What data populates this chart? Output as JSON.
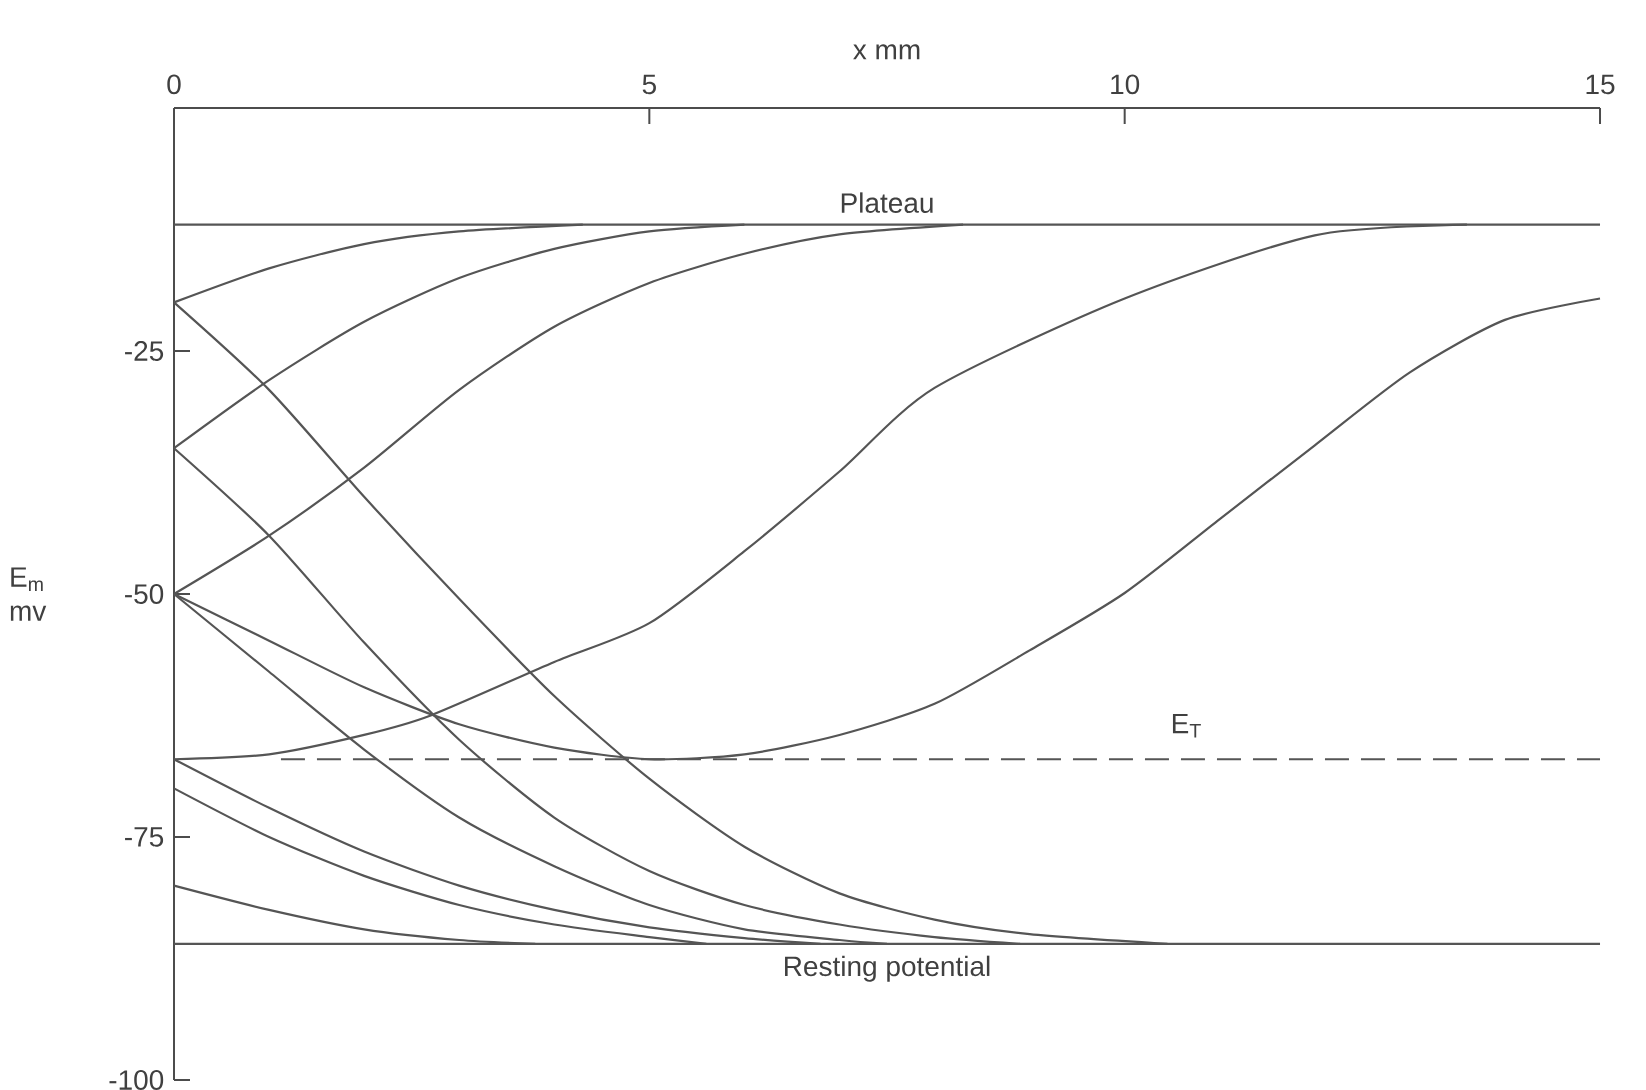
{
  "chart_data": {
    "type": "line",
    "xlabel": "x mm",
    "ylabel": "E$_{m}$ mv",
    "xlim": [
      0,
      15
    ],
    "ylim": [
      -100,
      0
    ],
    "xticks": [
      0,
      5,
      10,
      15
    ],
    "yticks": [
      -25,
      -50,
      -75,
      -100
    ],
    "grid": false,
    "marker": "none",
    "line_style": "solid",
    "series": [
      {
        "color": "#555555",
        "x": [
          0,
          1,
          2,
          3,
          4.3
        ],
        "values": [
          -20,
          -16.5,
          -14,
          -12.7,
          -12
        ]
      },
      {
        "color": "#555555",
        "x": [
          0,
          1,
          2,
          3,
          4,
          5,
          6
        ],
        "values": [
          -35,
          -28,
          -22,
          -17.5,
          -14.5,
          -12.7,
          -12
        ]
      },
      {
        "color": "#555555",
        "x": [
          0,
          1,
          2,
          3,
          4,
          5,
          6,
          7,
          8.3
        ],
        "values": [
          -50,
          -44,
          -37,
          -29,
          -22.5,
          -18,
          -15,
          -13,
          -12
        ]
      },
      {
        "color": "#555555",
        "x": [
          0,
          1,
          2,
          2.7,
          4,
          5,
          6,
          7,
          8,
          10,
          12,
          13.6
        ],
        "values": [
          -67,
          -66.5,
          -64.5,
          -62.5,
          -57,
          -53,
          -45.6,
          -37.4,
          -28.8,
          -19.6,
          -13.1,
          -12
        ]
      },
      {
        "color": "#555555",
        "x": [
          0,
          1,
          2,
          3,
          4,
          5,
          6,
          7,
          8,
          9,
          10,
          11,
          12,
          13,
          14,
          15
        ],
        "values": [
          -50,
          -54.8,
          -59.6,
          -63.4,
          -65.8,
          -67,
          -66.5,
          -64.5,
          -61.3,
          -55.8,
          -49.9,
          -42.3,
          -34.7,
          -27.2,
          -21.8,
          -19.6
        ]
      },
      {
        "color": "#555555",
        "x": [
          0,
          1,
          2,
          3,
          4,
          5,
          6,
          7,
          8,
          9,
          10.45
        ],
        "values": [
          -20,
          -29,
          -40,
          -50.5,
          -60.5,
          -69,
          -76,
          -80.8,
          -83.5,
          -85,
          -86
        ]
      },
      {
        "color": "#555555",
        "x": [
          0,
          1,
          2,
          3,
          4,
          5,
          6,
          7,
          8,
          8.9
        ],
        "values": [
          -35,
          -44,
          -55,
          -65,
          -73,
          -78.5,
          -82,
          -84,
          -85.3,
          -86
        ]
      },
      {
        "color": "#555555",
        "x": [
          0,
          1,
          2,
          3,
          4,
          5,
          6,
          7,
          7.5
        ],
        "values": [
          -50,
          -58,
          -66,
          -73,
          -78,
          -82,
          -84.5,
          -85.6,
          -86
        ]
      },
      {
        "color": "#555555",
        "x": [
          0,
          1,
          2,
          3,
          4,
          5,
          6,
          6.8
        ],
        "values": [
          -67,
          -72,
          -76.5,
          -80,
          -82.5,
          -84.3,
          -85.4,
          -86
        ]
      },
      {
        "color": "#555555",
        "x": [
          0,
          1,
          2,
          3,
          4,
          5,
          5.6
        ],
        "values": [
          -70,
          -75,
          -79,
          -82,
          -84,
          -85.3,
          -86
        ]
      },
      {
        "color": "#555555",
        "x": [
          0,
          1,
          2,
          3,
          3.8
        ],
        "values": [
          -80,
          -82.5,
          -84.5,
          -85.6,
          -86
        ]
      }
    ],
    "ref_lines": [
      {
        "axis": "y",
        "value": -12,
        "label": "Plateau",
        "color": "#555555",
        "line_style": "solid"
      },
      {
        "axis": "y",
        "value": -86,
        "label": "Resting potential",
        "color": "#555555",
        "line_style": "solid"
      },
      {
        "axis": "y",
        "value": -67,
        "label": "E$_{T}$",
        "color": "#555555",
        "line_style": "dashed"
      }
    ]
  }
}
